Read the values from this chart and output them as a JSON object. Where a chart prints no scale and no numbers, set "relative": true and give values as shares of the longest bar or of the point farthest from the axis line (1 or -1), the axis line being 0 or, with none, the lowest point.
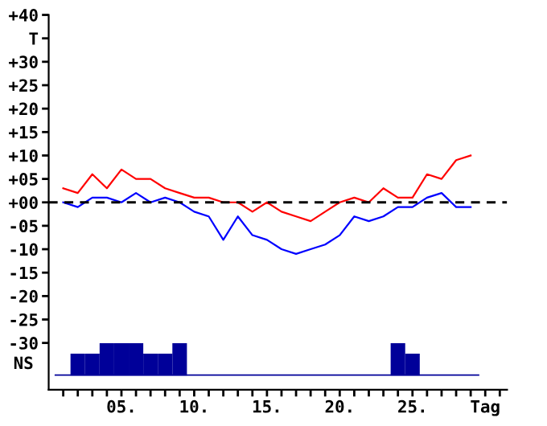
{
  "chart_data": [
    {
      "type": "line",
      "x": [
        1,
        2,
        3,
        4,
        5,
        6,
        7,
        8,
        9,
        10,
        11,
        12,
        13,
        14,
        15,
        16,
        17,
        18,
        19,
        20,
        21,
        22,
        23,
        24,
        25,
        26,
        27,
        28,
        29
      ],
      "series": [
        {
          "color": "#ff0000",
          "values": [
            3,
            2,
            6,
            3,
            7,
            5,
            5,
            3,
            2,
            1,
            1,
            0,
            0,
            -2,
            0,
            -2,
            -3,
            -4,
            -2,
            0,
            1,
            0,
            3,
            1,
            1,
            6,
            5,
            9,
            10
          ]
        },
        {
          "color": "#0000ff",
          "values": [
            0,
            -1,
            1,
            1,
            0,
            2,
            0,
            1,
            0,
            -2,
            -3,
            -8,
            -3,
            -7,
            -8,
            -10,
            -11,
            -10,
            -9,
            -7,
            -3,
            -4,
            -3,
            -1,
            -1,
            1,
            2,
            -1,
            -1
          ]
        }
      ],
      "xlim": [
        0,
        31.5
      ],
      "xticks": [
        {
          "value": 1,
          "label": null
        },
        {
          "value": 2,
          "label": null
        },
        {
          "value": 3,
          "label": null
        },
        {
          "value": 4,
          "label": null
        },
        {
          "value": 5,
          "label": "05."
        },
        {
          "value": 6,
          "label": null
        },
        {
          "value": 7,
          "label": null
        },
        {
          "value": 8,
          "label": null
        },
        {
          "value": 9,
          "label": null
        },
        {
          "value": 10,
          "label": "10."
        },
        {
          "value": 11,
          "label": null
        },
        {
          "value": 12,
          "label": null
        },
        {
          "value": 13,
          "label": null
        },
        {
          "value": 14,
          "label": null
        },
        {
          "value": 15,
          "label": "15."
        },
        {
          "value": 16,
          "label": null
        },
        {
          "value": 17,
          "label": null
        },
        {
          "value": 18,
          "label": null
        },
        {
          "value": 19,
          "label": null
        },
        {
          "value": 20,
          "label": "20."
        },
        {
          "value": 21,
          "label": null
        },
        {
          "value": 22,
          "label": null
        },
        {
          "value": 23,
          "label": null
        },
        {
          "value": 24,
          "label": null
        },
        {
          "value": 25,
          "label": "25."
        },
        {
          "value": 26,
          "label": null
        },
        {
          "value": 27,
          "label": null
        },
        {
          "value": 28,
          "label": null
        },
        {
          "value": 29,
          "label": null
        },
        {
          "value": 30,
          "label": "Tag"
        },
        {
          "value": 31,
          "label": null
        }
      ],
      "ylim": [
        -40,
        40
      ],
      "yticks": [
        {
          "value": 40,
          "label": "+40"
        },
        {
          "value": 35,
          "label": "T"
        },
        {
          "value": 30,
          "label": "+30"
        },
        {
          "value": 25,
          "label": "+25"
        },
        {
          "value": 20,
          "label": "+20"
        },
        {
          "value": 15,
          "label": "+15"
        },
        {
          "value": 10,
          "label": "+10"
        },
        {
          "value": 5,
          "label": "+05"
        },
        {
          "value": 0,
          "label": "+00"
        },
        {
          "value": -5,
          "label": "-05"
        },
        {
          "value": -10,
          "label": "-10"
        },
        {
          "value": -15,
          "label": "-15"
        },
        {
          "value": -20,
          "label": "-20"
        },
        {
          "value": -25,
          "label": "-25"
        },
        {
          "value": -30,
          "label": "-30"
        }
      ],
      "ref_lines": [
        {
          "axis": "y",
          "value": 0,
          "color": "#000000",
          "line_style": "dashed"
        }
      ],
      "grid": false,
      "legend": false,
      "marker": "none",
      "line_style": "solid"
    },
    {
      "type": "bar",
      "ylabel": "NS",
      "relative": true,
      "tick_labels": false,
      "color": "#000099",
      "x": [
        1,
        2,
        3,
        4,
        5,
        6,
        7,
        8,
        9,
        10,
        11,
        12,
        13,
        14,
        15,
        16,
        17,
        18,
        19,
        20,
        21,
        22,
        23,
        24,
        25,
        26,
        27,
        28,
        29
      ],
      "xlim": [
        0,
        31.5
      ],
      "values": [
        0,
        0.67,
        0.67,
        1,
        1,
        1,
        0.67,
        0.67,
        1,
        0,
        0,
        0,
        0,
        0,
        0,
        0,
        0,
        0,
        0,
        0,
        0,
        0,
        0,
        1,
        0.67,
        0,
        0,
        0,
        0
      ]
    }
  ]
}
